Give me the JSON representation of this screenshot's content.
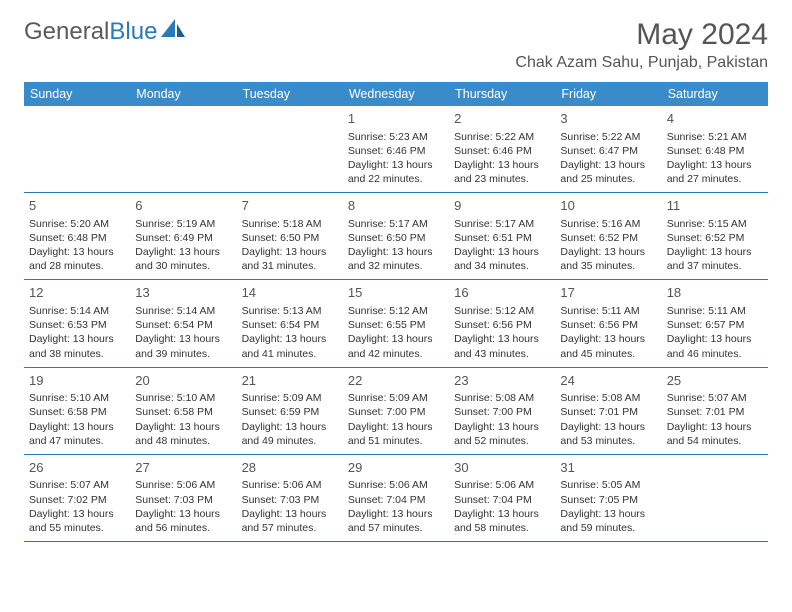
{
  "brand": {
    "part1": "General",
    "part2": "Blue"
  },
  "title": "May 2024",
  "location": "Chak Azam Sahu, Punjab, Pakistan",
  "colors": {
    "header_bg": "#3a8bc9",
    "header_text": "#ffffff",
    "border": "#2a7ab8",
    "text": "#333333",
    "title_text": "#555555",
    "logo_gray": "#5a5a5a",
    "logo_blue": "#2a7ab8",
    "background": "#ffffff"
  },
  "typography": {
    "month_title_size": 30,
    "location_size": 16,
    "day_header_size": 12.5,
    "day_num_size": 13,
    "cell_text_size": 10.5,
    "logo_size": 24
  },
  "calendar": {
    "type": "table",
    "day_headers": [
      "Sunday",
      "Monday",
      "Tuesday",
      "Wednesday",
      "Thursday",
      "Friday",
      "Saturday"
    ],
    "weeks": [
      [
        null,
        null,
        null,
        {
          "n": "1",
          "sr": "Sunrise: 5:23 AM",
          "ss": "Sunset: 6:46 PM",
          "d1": "Daylight: 13 hours",
          "d2": "and 22 minutes."
        },
        {
          "n": "2",
          "sr": "Sunrise: 5:22 AM",
          "ss": "Sunset: 6:46 PM",
          "d1": "Daylight: 13 hours",
          "d2": "and 23 minutes."
        },
        {
          "n": "3",
          "sr": "Sunrise: 5:22 AM",
          "ss": "Sunset: 6:47 PM",
          "d1": "Daylight: 13 hours",
          "d2": "and 25 minutes."
        },
        {
          "n": "4",
          "sr": "Sunrise: 5:21 AM",
          "ss": "Sunset: 6:48 PM",
          "d1": "Daylight: 13 hours",
          "d2": "and 27 minutes."
        }
      ],
      [
        {
          "n": "5",
          "sr": "Sunrise: 5:20 AM",
          "ss": "Sunset: 6:48 PM",
          "d1": "Daylight: 13 hours",
          "d2": "and 28 minutes."
        },
        {
          "n": "6",
          "sr": "Sunrise: 5:19 AM",
          "ss": "Sunset: 6:49 PM",
          "d1": "Daylight: 13 hours",
          "d2": "and 30 minutes."
        },
        {
          "n": "7",
          "sr": "Sunrise: 5:18 AM",
          "ss": "Sunset: 6:50 PM",
          "d1": "Daylight: 13 hours",
          "d2": "and 31 minutes."
        },
        {
          "n": "8",
          "sr": "Sunrise: 5:17 AM",
          "ss": "Sunset: 6:50 PM",
          "d1": "Daylight: 13 hours",
          "d2": "and 32 minutes."
        },
        {
          "n": "9",
          "sr": "Sunrise: 5:17 AM",
          "ss": "Sunset: 6:51 PM",
          "d1": "Daylight: 13 hours",
          "d2": "and 34 minutes."
        },
        {
          "n": "10",
          "sr": "Sunrise: 5:16 AM",
          "ss": "Sunset: 6:52 PM",
          "d1": "Daylight: 13 hours",
          "d2": "and 35 minutes."
        },
        {
          "n": "11",
          "sr": "Sunrise: 5:15 AM",
          "ss": "Sunset: 6:52 PM",
          "d1": "Daylight: 13 hours",
          "d2": "and 37 minutes."
        }
      ],
      [
        {
          "n": "12",
          "sr": "Sunrise: 5:14 AM",
          "ss": "Sunset: 6:53 PM",
          "d1": "Daylight: 13 hours",
          "d2": "and 38 minutes."
        },
        {
          "n": "13",
          "sr": "Sunrise: 5:14 AM",
          "ss": "Sunset: 6:54 PM",
          "d1": "Daylight: 13 hours",
          "d2": "and 39 minutes."
        },
        {
          "n": "14",
          "sr": "Sunrise: 5:13 AM",
          "ss": "Sunset: 6:54 PM",
          "d1": "Daylight: 13 hours",
          "d2": "and 41 minutes."
        },
        {
          "n": "15",
          "sr": "Sunrise: 5:12 AM",
          "ss": "Sunset: 6:55 PM",
          "d1": "Daylight: 13 hours",
          "d2": "and 42 minutes."
        },
        {
          "n": "16",
          "sr": "Sunrise: 5:12 AM",
          "ss": "Sunset: 6:56 PM",
          "d1": "Daylight: 13 hours",
          "d2": "and 43 minutes."
        },
        {
          "n": "17",
          "sr": "Sunrise: 5:11 AM",
          "ss": "Sunset: 6:56 PM",
          "d1": "Daylight: 13 hours",
          "d2": "and 45 minutes."
        },
        {
          "n": "18",
          "sr": "Sunrise: 5:11 AM",
          "ss": "Sunset: 6:57 PM",
          "d1": "Daylight: 13 hours",
          "d2": "and 46 minutes."
        }
      ],
      [
        {
          "n": "19",
          "sr": "Sunrise: 5:10 AM",
          "ss": "Sunset: 6:58 PM",
          "d1": "Daylight: 13 hours",
          "d2": "and 47 minutes."
        },
        {
          "n": "20",
          "sr": "Sunrise: 5:10 AM",
          "ss": "Sunset: 6:58 PM",
          "d1": "Daylight: 13 hours",
          "d2": "and 48 minutes."
        },
        {
          "n": "21",
          "sr": "Sunrise: 5:09 AM",
          "ss": "Sunset: 6:59 PM",
          "d1": "Daylight: 13 hours",
          "d2": "and 49 minutes."
        },
        {
          "n": "22",
          "sr": "Sunrise: 5:09 AM",
          "ss": "Sunset: 7:00 PM",
          "d1": "Daylight: 13 hours",
          "d2": "and 51 minutes."
        },
        {
          "n": "23",
          "sr": "Sunrise: 5:08 AM",
          "ss": "Sunset: 7:00 PM",
          "d1": "Daylight: 13 hours",
          "d2": "and 52 minutes."
        },
        {
          "n": "24",
          "sr": "Sunrise: 5:08 AM",
          "ss": "Sunset: 7:01 PM",
          "d1": "Daylight: 13 hours",
          "d2": "and 53 minutes."
        },
        {
          "n": "25",
          "sr": "Sunrise: 5:07 AM",
          "ss": "Sunset: 7:01 PM",
          "d1": "Daylight: 13 hours",
          "d2": "and 54 minutes."
        }
      ],
      [
        {
          "n": "26",
          "sr": "Sunrise: 5:07 AM",
          "ss": "Sunset: 7:02 PM",
          "d1": "Daylight: 13 hours",
          "d2": "and 55 minutes."
        },
        {
          "n": "27",
          "sr": "Sunrise: 5:06 AM",
          "ss": "Sunset: 7:03 PM",
          "d1": "Daylight: 13 hours",
          "d2": "and 56 minutes."
        },
        {
          "n": "28",
          "sr": "Sunrise: 5:06 AM",
          "ss": "Sunset: 7:03 PM",
          "d1": "Daylight: 13 hours",
          "d2": "and 57 minutes."
        },
        {
          "n": "29",
          "sr": "Sunrise: 5:06 AM",
          "ss": "Sunset: 7:04 PM",
          "d1": "Daylight: 13 hours",
          "d2": "and 57 minutes."
        },
        {
          "n": "30",
          "sr": "Sunrise: 5:06 AM",
          "ss": "Sunset: 7:04 PM",
          "d1": "Daylight: 13 hours",
          "d2": "and 58 minutes."
        },
        {
          "n": "31",
          "sr": "Sunrise: 5:05 AM",
          "ss": "Sunset: 7:05 PM",
          "d1": "Daylight: 13 hours",
          "d2": "and 59 minutes."
        },
        null
      ]
    ]
  }
}
